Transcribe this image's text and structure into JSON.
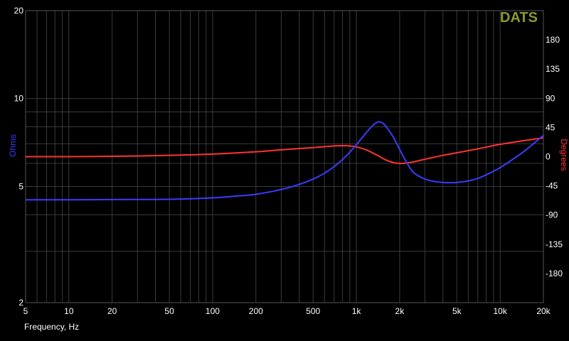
{
  "brand": "DATS",
  "colors": {
    "background": "#000000",
    "grid": "#3a3a3a",
    "impedance": "#3b3bff",
    "phase": "#ff3333",
    "brand": "#8a9a2a",
    "text": "#ffffff"
  },
  "chart_data": {
    "type": "line",
    "xlabel": "Frequency, Hz",
    "ylabel_left": "Ohms",
    "ylabel_right": "Degrees",
    "x_scale": "log",
    "y_left_scale": "log",
    "xlim": [
      5,
      20000
    ],
    "ylim_left": [
      2,
      20
    ],
    "ylim_right": [
      -225,
      225
    ],
    "grid": true,
    "x_ticks": [
      {
        "value": 5,
        "label": "5"
      },
      {
        "value": 10,
        "label": "10"
      },
      {
        "value": 20,
        "label": "20"
      },
      {
        "value": 50,
        "label": "50"
      },
      {
        "value": 100,
        "label": "100"
      },
      {
        "value": 200,
        "label": "200"
      },
      {
        "value": 500,
        "label": "500"
      },
      {
        "value": 1000,
        "label": "1k"
      },
      {
        "value": 2000,
        "label": "2k"
      },
      {
        "value": 5000,
        "label": "5k"
      },
      {
        "value": 10000,
        "label": "10k"
      },
      {
        "value": 20000,
        "label": "20k"
      }
    ],
    "y_left_ticks": [
      {
        "value": 2,
        "label": "2"
      },
      {
        "value": 5,
        "label": "5"
      },
      {
        "value": 10,
        "label": "10"
      },
      {
        "value": 20,
        "label": "20"
      }
    ],
    "y_right_ticks": [
      {
        "value": 180,
        "label": "180"
      },
      {
        "value": 135,
        "label": "135"
      },
      {
        "value": 90,
        "label": "90"
      },
      {
        "value": 45,
        "label": "45"
      },
      {
        "value": 0,
        "label": "0"
      },
      {
        "value": -45,
        "label": "-45"
      },
      {
        "value": -90,
        "label": "-90"
      },
      {
        "value": -135,
        "label": "-135"
      },
      {
        "value": -180,
        "label": "-180"
      }
    ],
    "series": [
      {
        "axis": "left",
        "x": [
          5,
          10,
          20,
          50,
          100,
          150,
          200,
          300,
          400,
          500,
          600,
          700,
          800,
          900,
          1000,
          1100,
          1200,
          1300,
          1400,
          1500,
          1600,
          1800,
          2000,
          2200,
          2500,
          3000,
          3500,
          4000,
          4500,
          5000,
          6000,
          7000,
          8000,
          10000,
          12000,
          15000,
          20000
        ],
        "y": [
          4.5,
          4.5,
          4.51,
          4.52,
          4.57,
          4.64,
          4.7,
          4.88,
          5.08,
          5.3,
          5.55,
          5.85,
          6.18,
          6.55,
          6.95,
          7.35,
          7.75,
          8.08,
          8.3,
          8.28,
          8.05,
          7.4,
          6.7,
          6.13,
          5.58,
          5.3,
          5.2,
          5.16,
          5.15,
          5.16,
          5.22,
          5.33,
          5.48,
          5.8,
          6.15,
          6.65,
          7.48
        ]
      },
      {
        "axis": "right",
        "x": [
          5,
          10,
          20,
          50,
          100,
          200,
          300,
          500,
          700,
          800,
          900,
          1000,
          1100,
          1200,
          1400,
          1600,
          1800,
          2000,
          2200,
          2500,
          3000,
          4000,
          5000,
          7000,
          10000,
          15000,
          20000
        ],
        "y": [
          0,
          0,
          0.5,
          2,
          4,
          7.5,
          10.5,
          14,
          16.5,
          17,
          16.5,
          15,
          12.5,
          9.5,
          2,
          -5,
          -9,
          -10.5,
          -10,
          -8,
          -4,
          2,
          6,
          12,
          19,
          25,
          29
        ]
      }
    ]
  }
}
